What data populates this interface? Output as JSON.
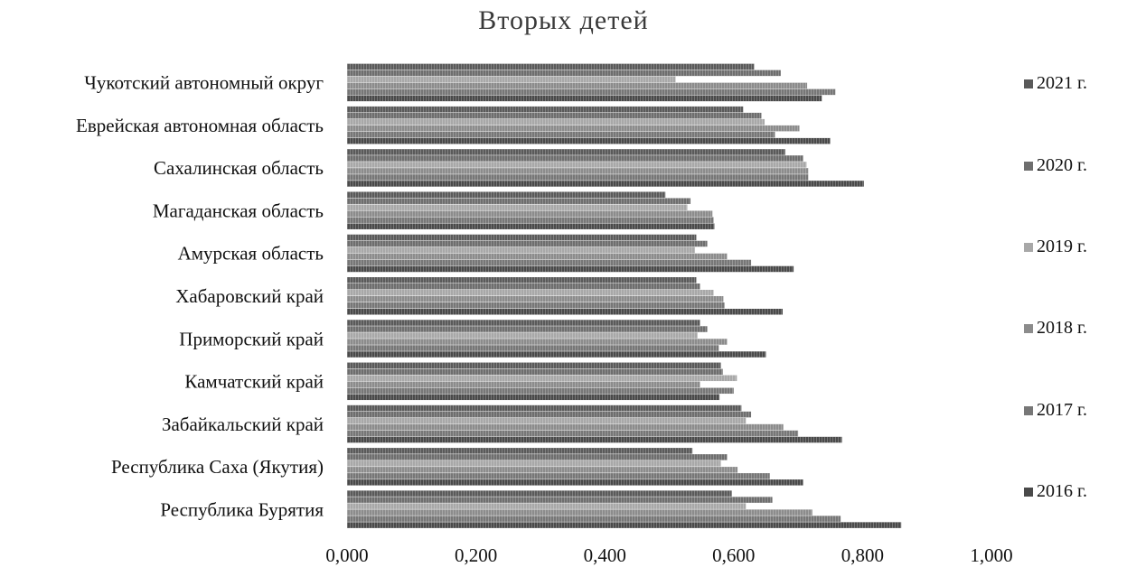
{
  "chart_data": {
    "type": "bar",
    "orientation": "horizontal",
    "title": "Вторых детей",
    "categories": [
      "Чукотский автономный округ",
      "Еврейская автономная область",
      "Сахалинская область",
      "Магаданская область",
      "Амурская область",
      "Хабаровский край",
      "Приморский край",
      "Камчатский край",
      "Забайкальский край",
      "Республика Саха (Якутия)",
      "Республика Бурятия"
    ],
    "series": [
      {
        "name": "2021 г.",
        "color": "#5a5a5a",
        "values": [
          0.632,
          0.615,
          0.68,
          0.494,
          0.542,
          0.542,
          0.548,
          0.58,
          0.612,
          0.536,
          0.597
        ]
      },
      {
        "name": "2020 г.",
        "color": "#6e6e6e",
        "values": [
          0.673,
          0.643,
          0.708,
          0.533,
          0.559,
          0.548,
          0.559,
          0.583,
          0.627,
          0.59,
          0.66
        ]
      },
      {
        "name": "2019 г.",
        "color": "#a8a8a8",
        "values": [
          0.51,
          0.648,
          0.713,
          0.528,
          0.54,
          0.569,
          0.544,
          0.605,
          0.619,
          0.58,
          0.619
        ]
      },
      {
        "name": "2018 г.",
        "color": "#8c8c8c",
        "values": [
          0.714,
          0.702,
          0.716,
          0.567,
          0.59,
          0.584,
          0.59,
          0.548,
          0.677,
          0.606,
          0.722
        ]
      },
      {
        "name": "2017 г.",
        "color": "#777777",
        "values": [
          0.758,
          0.664,
          0.716,
          0.569,
          0.627,
          0.586,
          0.577,
          0.6,
          0.7,
          0.656,
          0.766
        ]
      },
      {
        "name": "2016 г.",
        "color": "#4a4a4a",
        "values": [
          0.737,
          0.75,
          0.802,
          0.57,
          0.693,
          0.676,
          0.65,
          0.578,
          0.768,
          0.708,
          0.86
        ]
      }
    ],
    "xlim": [
      0,
      1
    ],
    "xticks": [
      "0,000",
      "0,200",
      "0,400",
      "0,600",
      "0,800",
      "1,000"
    ],
    "legend_position": "right",
    "grid": false
  }
}
